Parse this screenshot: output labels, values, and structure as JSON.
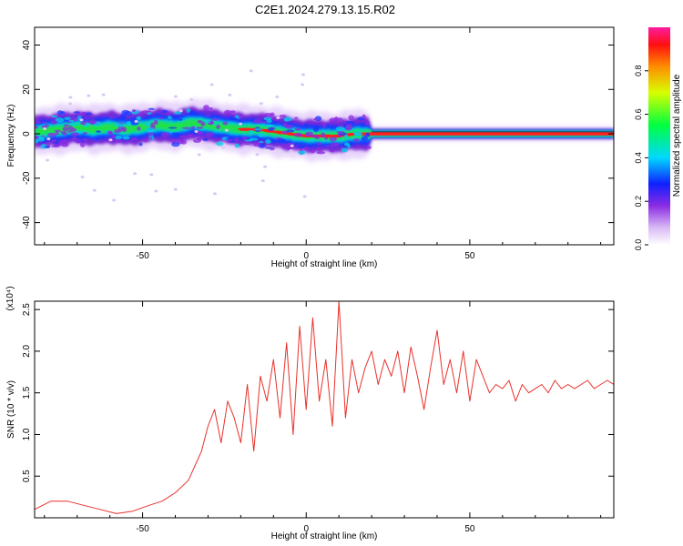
{
  "title": "C2E1.2024.279.13.15.R02",
  "chart_data": [
    {
      "type": "heatmap",
      "xlabel": "Height of straight line (km)",
      "ylabel": "Frequency (Hz)",
      "xlim": [
        -83,
        94
      ],
      "ylim": [
        -50,
        48
      ],
      "xticks": [
        -50,
        0,
        50
      ],
      "yticks": [
        40,
        20,
        0,
        -20,
        -40
      ],
      "grid": false,
      "ridge": {
        "x": [
          -83,
          -75,
          -70,
          -65,
          -60,
          -55,
          -50,
          -45,
          -40,
          -35,
          -30,
          -25,
          -20,
          -15,
          -10,
          -5,
          0,
          5,
          10,
          15,
          20,
          30,
          40,
          50,
          60,
          70,
          80,
          94
        ],
        "y": [
          1,
          2,
          3,
          2,
          3,
          2,
          3,
          4,
          3,
          5,
          4,
          3,
          2,
          2,
          1,
          0,
          -1,
          -1,
          -1,
          0,
          0,
          0,
          0,
          0,
          0,
          0,
          0,
          0
        ]
      },
      "colorbar": {
        "label": "Normalized spectral amplitude",
        "range": [
          0.0,
          1.0
        ],
        "ticks": [
          0.0,
          0.2,
          0.4,
          0.6,
          0.8
        ]
      }
    },
    {
      "type": "line",
      "xlabel": "Height of straight line (km)",
      "ylabel": "SNR (10 * v/v)",
      "scale_label": "(x10⁴)",
      "xlim": [
        -83,
        94
      ],
      "ylim": [
        0,
        2.6
      ],
      "xticks": [
        -50,
        0,
        50
      ],
      "yticks": [
        0.5,
        1.0,
        1.5,
        2.0,
        2.5
      ],
      "ytick_labels": [
        "0.5",
        "1.0",
        "1.5",
        "2.0",
        "2.5"
      ],
      "grid": false,
      "series": [
        {
          "color": "#e8312b",
          "x": [
            -83,
            -78,
            -73,
            -68,
            -63,
            -58,
            -53,
            -48,
            -44,
            -40,
            -36,
            -32,
            -30,
            -28,
            -26,
            -24,
            -22,
            -20,
            -18,
            -16,
            -14,
            -12,
            -10,
            -8,
            -6,
            -4,
            -2,
            0,
            2,
            4,
            6,
            8,
            10,
            12,
            14,
            16,
            18,
            20,
            22,
            24,
            26,
            28,
            30,
            32,
            34,
            36,
            38,
            40,
            42,
            44,
            46,
            48,
            50,
            52,
            54,
            56,
            58,
            60,
            62,
            64,
            66,
            68,
            70,
            72,
            74,
            76,
            78,
            80,
            82,
            84,
            86,
            88,
            90,
            92,
            94
          ],
          "y": [
            0.1,
            0.2,
            0.2,
            0.15,
            0.1,
            0.05,
            0.08,
            0.15,
            0.2,
            0.3,
            0.45,
            0.8,
            1.1,
            1.3,
            0.9,
            1.4,
            1.2,
            0.9,
            1.6,
            0.8,
            1.7,
            1.4,
            1.9,
            1.2,
            2.1,
            1.0,
            2.3,
            1.3,
            2.4,
            1.4,
            1.9,
            1.1,
            2.6,
            1.2,
            1.9,
            1.5,
            1.8,
            2.0,
            1.6,
            1.9,
            1.7,
            2.0,
            1.5,
            2.05,
            1.7,
            1.3,
            1.8,
            2.25,
            1.6,
            1.9,
            1.5,
            2.0,
            1.4,
            1.9,
            1.7,
            1.5,
            1.6,
            1.55,
            1.65,
            1.4,
            1.6,
            1.5,
            1.55,
            1.6,
            1.5,
            1.65,
            1.55,
            1.6,
            1.55,
            1.6,
            1.65,
            1.55,
            1.6,
            1.65,
            1.6
          ]
        }
      ]
    }
  ]
}
